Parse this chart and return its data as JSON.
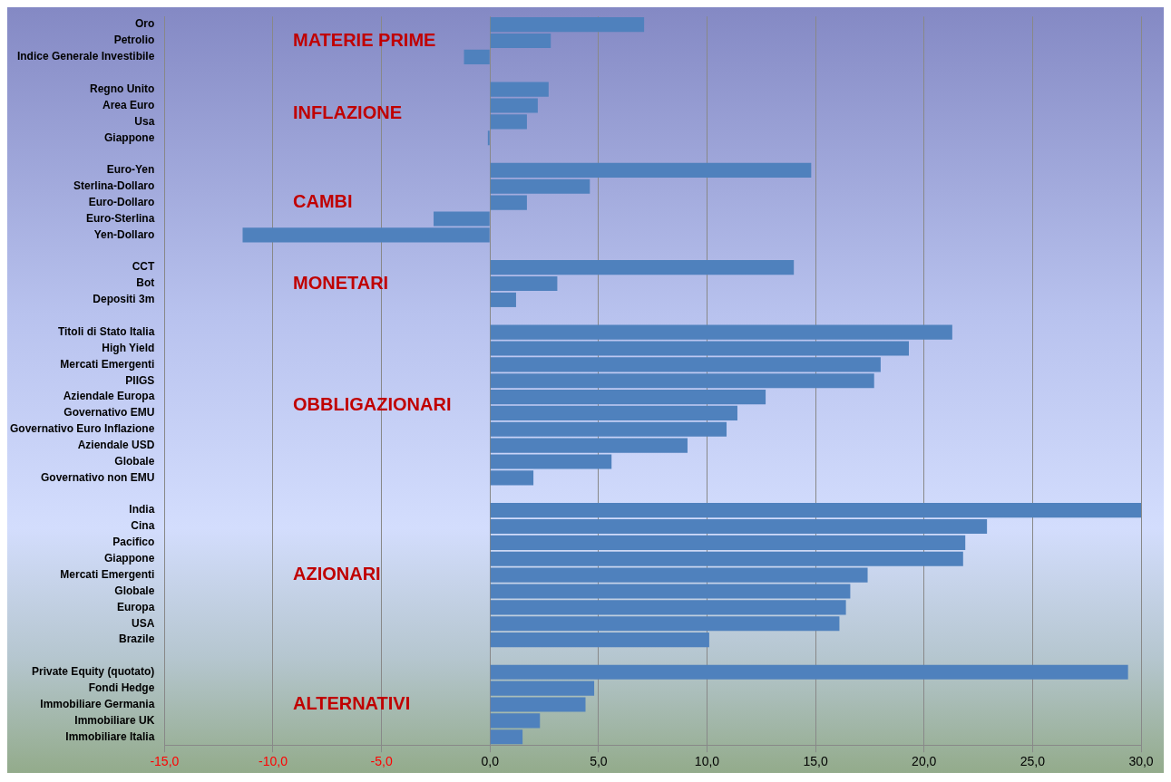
{
  "chart_data": {
    "type": "bar",
    "orientation": "horizontal",
    "categories": [
      "Oro",
      "Petrolio",
      "Indice Generale Investibile",
      null,
      "Regno Unito",
      "Area Euro",
      "Usa",
      "Giappone",
      null,
      "Euro-Yen",
      "Sterlina-Dollaro",
      "Euro-Dollaro",
      "Euro-Sterlina",
      "Yen-Dollaro",
      null,
      "CCT",
      "Bot",
      "Depositi 3m",
      null,
      "Titoli di Stato Italia",
      "High Yield",
      "Mercati Emergenti",
      "PIIGS",
      "Aziendale Europa",
      "Governativo EMU",
      "Governativo Euro Inflazione",
      "Aziendale USD",
      "Globale",
      "Governativo non EMU",
      null,
      "India",
      "Cina",
      "Pacifico",
      "Giappone",
      "Mercati Emergenti",
      "Globale",
      "Europa",
      "USA",
      "Brazile",
      null,
      "Private Equity (quotato)",
      "Fondi Hedge",
      "Immobiliare Germania",
      "Immobiliare UK",
      "Immobiliare Italia"
    ],
    "values": [
      7.1,
      2.8,
      -1.2,
      null,
      2.7,
      2.2,
      1.7,
      -0.1,
      null,
      14.8,
      4.6,
      1.7,
      -2.6,
      -11.4,
      null,
      14.0,
      3.1,
      1.2,
      null,
      21.3,
      19.3,
      18.0,
      17.7,
      12.7,
      11.4,
      10.9,
      9.1,
      5.6,
      2.0,
      null,
      30.0,
      22.9,
      21.9,
      21.8,
      17.4,
      16.6,
      16.4,
      16.1,
      10.1,
      null,
      29.4,
      4.8,
      4.4,
      2.3,
      1.5
    ],
    "color": "#4f81bd",
    "xlim": [
      -15,
      30
    ],
    "xticks": [
      {
        "value": -15,
        "label": "-15,0"
      },
      {
        "value": -10,
        "label": "-10,0"
      },
      {
        "value": -5,
        "label": "-5,0"
      },
      {
        "value": 0,
        "label": "0,0"
      },
      {
        "value": 5,
        "label": "5,0"
      },
      {
        "value": 10,
        "label": "10,0"
      },
      {
        "value": 15,
        "label": "15,0"
      },
      {
        "value": 20,
        "label": "20,0"
      },
      {
        "value": 25,
        "label": "25,0"
      },
      {
        "value": 30,
        "label": "30,0"
      }
    ],
    "annotations": [
      "MATERIE PRIME",
      "INFLAZIONE",
      "CAMBI",
      "MONETARI",
      "OBBLIGAZIONARI",
      "AZIONARI",
      "ALTERNATIVI"
    ],
    "grid": "x",
    "legend": false
  }
}
